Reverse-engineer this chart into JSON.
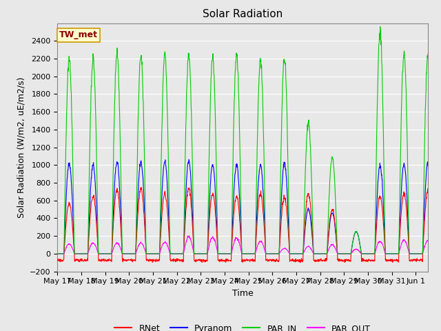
{
  "title": "Solar Radiation",
  "ylabel": "Solar Radiation (W/m2, uE/m2/s)",
  "xlabel": "Time",
  "station_label": "TW_met",
  "ylim": [
    -200,
    2600
  ],
  "yticks": [
    -200,
    0,
    200,
    400,
    600,
    800,
    1000,
    1200,
    1400,
    1600,
    1800,
    2000,
    2200,
    2400
  ],
  "xlim_days": 15.5,
  "line_colors": {
    "RNet": "#FF0000",
    "Pyranom": "#0000FF",
    "PAR_IN": "#00CC00",
    "PAR_OUT": "#FF00FF"
  },
  "fig_bg_color": "#E8E8E8",
  "plot_bg_color": "#E8E8E8",
  "x_tick_labels": [
    "May 17",
    "May 18",
    "May 19",
    "May 20",
    "May 21",
    "May 22",
    "May 23",
    "May 24",
    "May 25",
    "May 26",
    "May 27",
    "May 28",
    "May 29",
    "May 30",
    "May 31",
    "Jun 1"
  ],
  "rnet_peaks": [
    570,
    650,
    720,
    740,
    680,
    740,
    680,
    650,
    680,
    640,
    680,
    500,
    50,
    650,
    680,
    700
  ],
  "pyranom_peaks": [
    1020,
    1000,
    1030,
    1030,
    1040,
    1050,
    1010,
    1000,
    1000,
    1020,
    500,
    460,
    250,
    1000,
    1010,
    1020
  ],
  "par_in_peaks": [
    2200,
    2200,
    2240,
    2240,
    2240,
    2240,
    2230,
    2230,
    2200,
    2200,
    1480,
    1090,
    250,
    2500,
    2250,
    2250
  ],
  "par_out_peaks": [
    110,
    120,
    120,
    120,
    130,
    190,
    185,
    175,
    140,
    60,
    80,
    100,
    50,
    140,
    155,
    150
  ],
  "title_fontsize": 11,
  "label_fontsize": 9,
  "tick_fontsize": 8,
  "legend_fontsize": 9
}
